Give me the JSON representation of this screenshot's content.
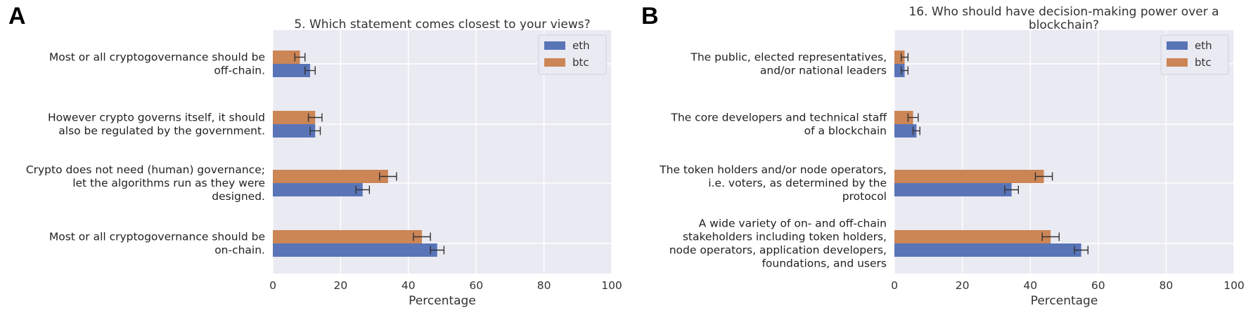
{
  "chart_data": [
    {
      "panel_label": "A",
      "type": "bar",
      "orientation": "horizontal",
      "title": "5. Which statement comes closest to your views?",
      "xlabel": "Percentage",
      "xlim": [
        0,
        100
      ],
      "xticks": [
        0,
        20,
        40,
        60,
        80,
        100
      ],
      "grid": true,
      "legend_position": "top-right",
      "categories": [
        [
          "Most or all cryptogovernance should be",
          "off-chain."
        ],
        [
          "However crypto governs itself, it should",
          "also be regulated by the government."
        ],
        [
          "Crypto does not need (human) governance;",
          "let the algorithms run as they were",
          "designed."
        ],
        [
          "Most or all cryptogovernance should be",
          "on-chain."
        ]
      ],
      "series": [
        {
          "name": "eth",
          "color": "#5975b8",
          "values": [
            11,
            12.5,
            26.5,
            48.5
          ],
          "errors": [
            1.5,
            1.5,
            2,
            2
          ]
        },
        {
          "name": "btc",
          "color": "#cc8555",
          "values": [
            8,
            12.5,
            34,
            44
          ],
          "errors": [
            1.5,
            2,
            2.5,
            2.5
          ]
        }
      ]
    },
    {
      "panel_label": "B",
      "type": "bar",
      "orientation": "horizontal",
      "title": [
        "16. Who should have decision-making power over a",
        "blockchain?"
      ],
      "xlabel": "Percentage",
      "xlim": [
        0,
        100
      ],
      "xticks": [
        0,
        20,
        40,
        60,
        80,
        100
      ],
      "grid": true,
      "legend_position": "top-right",
      "categories": [
        [
          "The public, elected representatives,",
          "and/or national leaders"
        ],
        [
          "The core developers and technical staff",
          "of a blockchain"
        ],
        [
          "The token holders and/or node operators,",
          "i.e. voters, as determined by the",
          "protocol"
        ],
        [
          "A wide variety of on- and off-chain",
          "stakeholders including token holders,",
          "node operators, application developers,",
          "foundations, and users"
        ]
      ],
      "series": [
        {
          "name": "eth",
          "color": "#5975b8",
          "values": [
            3,
            6.5,
            34.5,
            55
          ],
          "errors": [
            1,
            1,
            2,
            2
          ]
        },
        {
          "name": "btc",
          "color": "#cc8555",
          "values": [
            3,
            5.5,
            44,
            46
          ],
          "errors": [
            1,
            1.5,
            2.5,
            2.5
          ]
        }
      ]
    }
  ]
}
